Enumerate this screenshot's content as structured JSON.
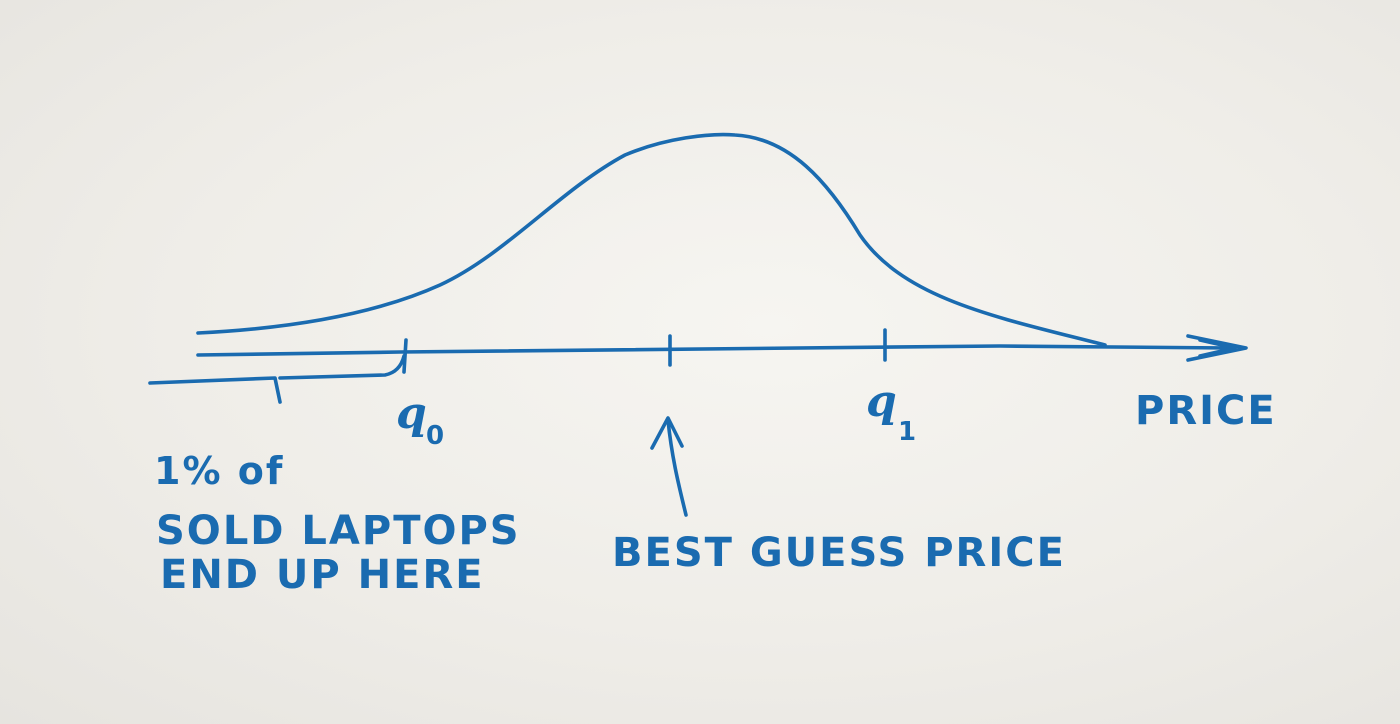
{
  "labels": {
    "q_low": "q",
    "q_low_sub": "0",
    "q_high": "q",
    "q_high_sub": "1",
    "axis": "PRICE",
    "best_guess": "BEST GUESS PRICE",
    "note_line1": "1% of",
    "note_line2": "SOLD LAPTOPS",
    "note_line3": "END UP HERE"
  },
  "colors": {
    "ink": "#1a6bb0",
    "paper": "#efede8"
  }
}
